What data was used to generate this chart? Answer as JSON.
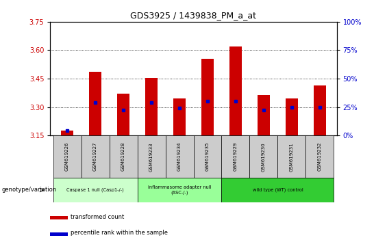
{
  "title": "GDS3925 / 1439838_PM_a_at",
  "samples": [
    "GSM619226",
    "GSM619227",
    "GSM619228",
    "GSM619233",
    "GSM619234",
    "GSM619235",
    "GSM619229",
    "GSM619230",
    "GSM619231",
    "GSM619232"
  ],
  "bar_bottoms": [
    3.15,
    3.15,
    3.15,
    3.15,
    3.15,
    3.15,
    3.15,
    3.15,
    3.15,
    3.15
  ],
  "bar_tops": [
    3.175,
    3.485,
    3.37,
    3.455,
    3.345,
    3.555,
    3.62,
    3.365,
    3.345,
    3.415
  ],
  "percentile_values": [
    3.175,
    3.325,
    3.285,
    3.325,
    3.295,
    3.33,
    3.33,
    3.285,
    3.3,
    3.3
  ],
  "ylim_left": [
    3.15,
    3.75
  ],
  "ylim_right": [
    0,
    100
  ],
  "yticks_left": [
    3.15,
    3.3,
    3.45,
    3.6,
    3.75
  ],
  "yticks_right": [
    0,
    25,
    50,
    75,
    100
  ],
  "bar_color": "#CC0000",
  "percentile_color": "#0000CC",
  "grid_color": "#000000",
  "groups": [
    {
      "label": "Caspase 1 null (Casp1-/-)",
      "start": 0,
      "end": 3,
      "color": "#CCFFCC"
    },
    {
      "label": "inflammasome adapter null\n(ASC-/-)",
      "start": 3,
      "end": 6,
      "color": "#99FF99"
    },
    {
      "label": "wild type (WT) control",
      "start": 6,
      "end": 10,
      "color": "#33CC33"
    }
  ],
  "legend_red_label": "transformed count",
  "legend_blue_label": "percentile rank within the sample",
  "xlabel_left": "genotype/variation",
  "background_color": "#FFFFFF",
  "plot_bg": "#FFFFFF",
  "tick_label_color_left": "#CC0000",
  "tick_label_color_right": "#0000CC",
  "gsm_cell_color": "#CCCCCC"
}
